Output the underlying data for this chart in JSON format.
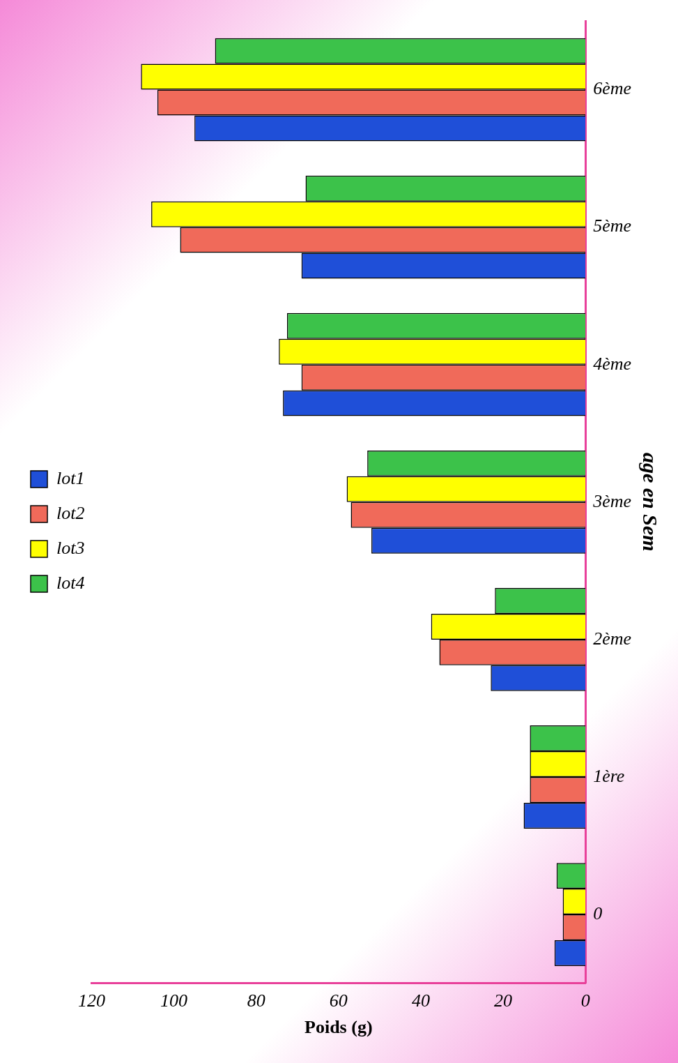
{
  "chart_data": {
    "type": "bar",
    "orientation": "horizontal",
    "xlabel": "Poids (g)",
    "ylabel": "age en Sem",
    "categories": [
      "6ème",
      "5ème",
      "4ème",
      "3ème",
      "2ème",
      "1ère",
      "0"
    ],
    "series": [
      {
        "name": "lot1",
        "color": "#1f4fd8",
        "values": [
          95,
          69,
          73.5,
          52,
          23,
          15,
          7.5
        ]
      },
      {
        "name": "lot2",
        "color": "#f06a5a",
        "values": [
          104,
          98.5,
          69,
          57,
          35.5,
          13.5,
          5.5
        ]
      },
      {
        "name": "lot3",
        "color": "#ffff00",
        "values": [
          108,
          105.5,
          74.5,
          58,
          37.5,
          13.5,
          5.5
        ]
      },
      {
        "name": "lot4",
        "color": "#3cc24a",
        "values": [
          90,
          68,
          72.5,
          53,
          22,
          13.5,
          7
        ]
      }
    ],
    "xlim": [
      120,
      0
    ],
    "xticks": [
      0,
      20,
      40,
      60,
      80,
      100,
      120
    ],
    "grid": false,
    "legend": "left"
  }
}
